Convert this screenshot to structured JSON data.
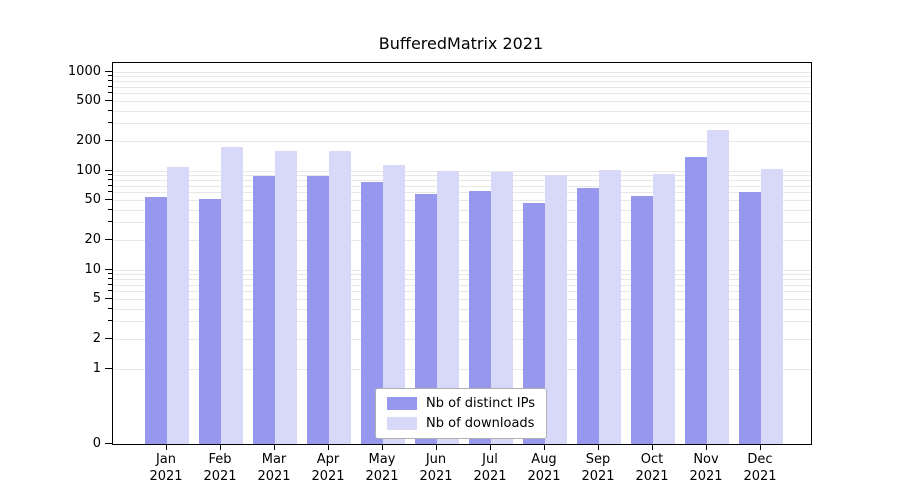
{
  "chart_data": {
    "type": "bar",
    "title": "BufferedMatrix 2021",
    "categories": [
      "Jan 2021",
      "Feb 2021",
      "Mar 2021",
      "Apr 2021",
      "May 2021",
      "Jun 2021",
      "Jul 2021",
      "Aug 2021",
      "Sep 2021",
      "Oct 2021",
      "Nov 2021",
      "Dec 2021"
    ],
    "series": [
      {
        "name": "Nb of distinct IPs",
        "color": "#9797ee",
        "values": [
          55,
          52,
          88,
          90,
          78,
          58,
          63,
          48,
          68,
          56,
          140,
          62
        ]
      },
      {
        "name": "Nb of downloads",
        "color": "#d8d8f8",
        "values": [
          110,
          175,
          160,
          160,
          115,
          100,
          97,
          92,
          102,
          93,
          260,
          105
        ]
      }
    ],
    "yscale": "log-with-zero-baseline",
    "yticks": [
      0,
      1,
      2,
      5,
      10,
      20,
      50,
      100,
      200,
      500,
      1000
    ],
    "ylim": [
      0,
      1230
    ],
    "xlabel": "",
    "ylabel": "",
    "grid": true,
    "legend_position": "lower center",
    "colors": {
      "grid": "#e7e7e7",
      "axis": "#000000",
      "background": "#ffffff"
    }
  }
}
